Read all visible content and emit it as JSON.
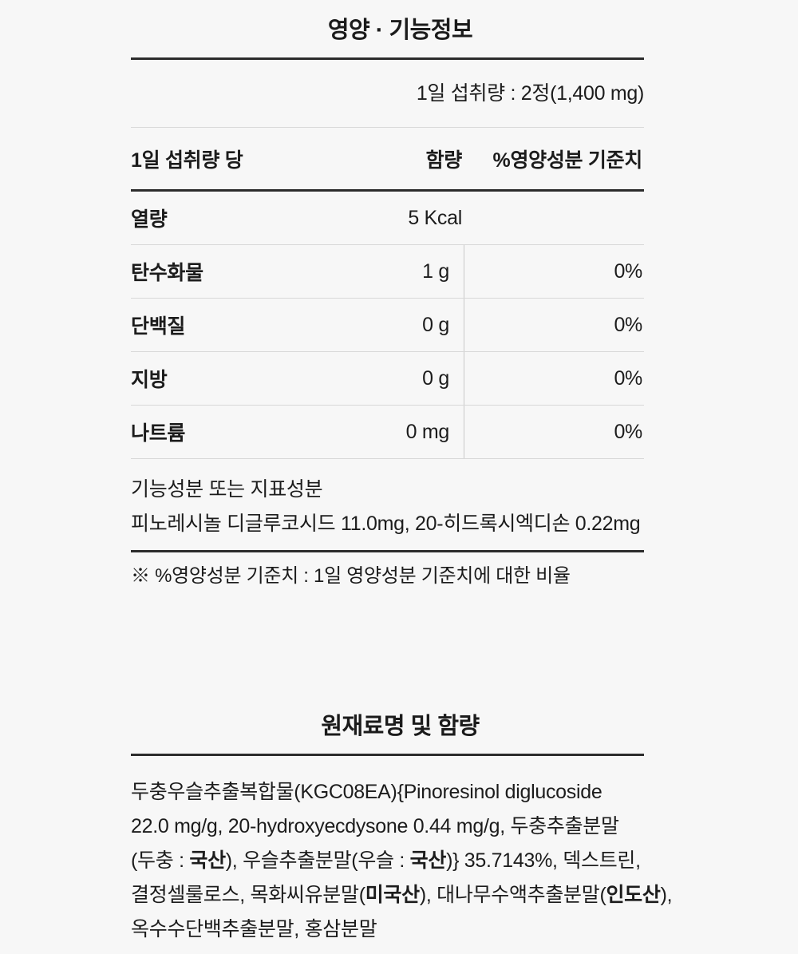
{
  "colors": {
    "background": "#f7f7f7",
    "text": "#1c1c1c",
    "rule_dark": "#2c2c2c",
    "rule_light": "#d8d8d8",
    "column_divider": "#c9c9c9"
  },
  "nutrition_section": {
    "title": "영양 · 기능정보",
    "serving_info": "1일 섭취량 : 2정(1,400 mg)",
    "table": {
      "header": {
        "per_serving": "1일 섭취량 당",
        "amount": "함량",
        "daily_value_pct": "%영양성분 기준치"
      },
      "rows": [
        {
          "label": "열량",
          "value": "5 Kcal",
          "percent": ""
        },
        {
          "label": "탄수화물",
          "value": "1 g",
          "percent": "0%"
        },
        {
          "label": "단백질",
          "value": "0 g",
          "percent": "0%"
        },
        {
          "label": "지방",
          "value": "0 g",
          "percent": "0%"
        },
        {
          "label": "나트륨",
          "value": "0 mg",
          "percent": "0%"
        }
      ]
    },
    "functional_ingredients": {
      "label": "기능성분 또는 지표성분",
      "value": "피노레시놀 디글루코시드 11.0mg, 20-히드록시엑디손 0.22mg"
    },
    "footnote": "※ %영양성분 기준치 : 1일 영양성분 기준치에 대한 비율"
  },
  "ingredients_section": {
    "title": "원재료명 및 함량",
    "lines": [
      [
        "두충우슬추출복합물(KGC08EA){Pinoresinol diglucoside"
      ],
      [
        "22.0 mg/g, 20-hydroxyecdysone 0.44 mg/g, 두충추출분말"
      ],
      [
        "(두충 : ",
        "국산",
        "), 우슬추출분말(우슬 : ",
        "국산",
        ")} 35.7143%, 덱스트린,"
      ],
      [
        "결정셀룰로스, 목화씨유분말(",
        "미국산",
        "), 대나무수액추출분말(",
        "인도산",
        "),"
      ],
      [
        "옥수수단백추출분말, 홍삼분말"
      ]
    ]
  }
}
